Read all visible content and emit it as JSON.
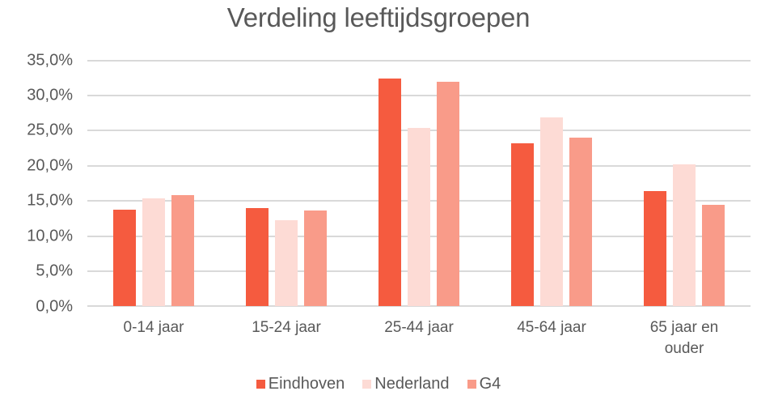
{
  "chart_data": {
    "type": "bar",
    "title": "Verdeling leeftijdsgroepen",
    "xlabel": "",
    "ylabel": "",
    "categories": [
      "0-14 jaar",
      "15-24 jaar",
      "25-44 jaar",
      "45-64 jaar",
      "65 jaar en ouder"
    ],
    "series": [
      {
        "name": "Eindhoven",
        "color": "#f55b3f",
        "values": [
          13.7,
          13.9,
          32.4,
          23.2,
          16.3
        ]
      },
      {
        "name": "Nederland",
        "color": "#fddbd5",
        "values": [
          15.3,
          12.2,
          25.3,
          26.8,
          20.1
        ]
      },
      {
        "name": "G4",
        "color": "#f99b89",
        "values": [
          15.8,
          13.6,
          31.9,
          23.9,
          14.4
        ]
      }
    ],
    "ylim": [
      0,
      35
    ],
    "yticks": [
      "0,0%",
      "5,0%",
      "10,0%",
      "15,0%",
      "20,0%",
      "25,0%",
      "30,0%",
      "35,0%"
    ],
    "grid": true,
    "legend_position": "bottom"
  },
  "title": "Verdeling leeftijdsgroepen",
  "x_labels": [
    {
      "line1": "0-14 jaar",
      "line2": ""
    },
    {
      "line1": "15-24 jaar",
      "line2": ""
    },
    {
      "line1": "25-44 jaar",
      "line2": ""
    },
    {
      "line1": "45-64 jaar",
      "line2": ""
    },
    {
      "line1": "65 jaar en",
      "line2": "ouder"
    }
  ],
  "y_labels": [
    "35,0%",
    "30,0%",
    "25,0%",
    "20,0%",
    "15,0%",
    "10,0%",
    "5,0%",
    "0,0%"
  ],
  "legend": [
    {
      "label": "Eindhoven",
      "color": "#f55b3f"
    },
    {
      "label": "Nederland",
      "color": "#fddbd5"
    },
    {
      "label": "G4",
      "color": "#f99b89"
    }
  ]
}
